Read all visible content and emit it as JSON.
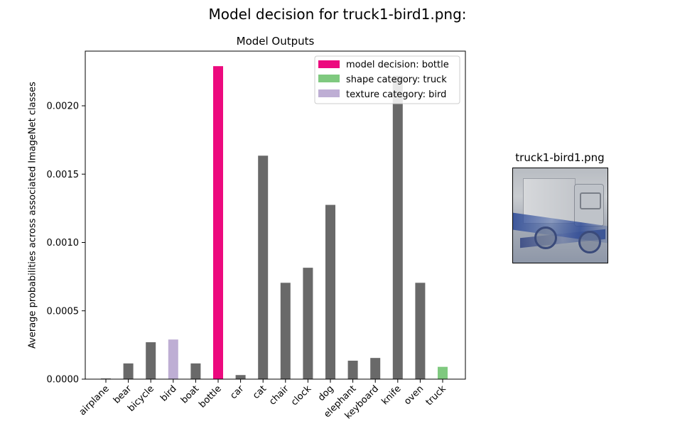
{
  "figure": {
    "suptitle": "Model decision for truck1-bird1.png:",
    "thumbnail_title": "truck1-bird1.png"
  },
  "chart_data": {
    "type": "bar",
    "title": "Model Outputs",
    "xlabel": "",
    "ylabel": "Average probabilities across associated ImageNet classes",
    "categories": [
      "airplane",
      "bear",
      "bicycle",
      "bird",
      "boat",
      "bottle",
      "car",
      "cat",
      "chair",
      "clock",
      "dog",
      "elephant",
      "keyboard",
      "knife",
      "oven",
      "truck"
    ],
    "values": [
      5e-06,
      0.000115,
      0.00027,
      0.00029,
      0.000115,
      0.00229,
      3e-05,
      0.001635,
      0.000705,
      0.000815,
      0.001275,
      0.000135,
      0.000155,
      0.00222,
      0.000705,
      9e-05
    ],
    "ylim": [
      0,
      0.0024
    ],
    "yticks": [
      0.0,
      0.0005,
      0.001,
      0.0015,
      0.002
    ],
    "ytick_labels": [
      "0.0000",
      "0.0005",
      "0.0010",
      "0.0015",
      "0.0020"
    ],
    "grid": false,
    "colors": {
      "default": "#696969",
      "model_decision": "#ec0a7e",
      "shape_category": "#7fc97f",
      "texture_category": "#beaed4"
    },
    "highlights": {
      "model_decision": "bottle",
      "shape_category": "truck",
      "texture_category": "bird"
    },
    "legend": {
      "position": "upper-right",
      "entries": [
        {
          "label": "model decision: bottle",
          "color": "#ec0a7e"
        },
        {
          "label": "shape category: truck",
          "color": "#7fc97f"
        },
        {
          "label": "texture category: bird",
          "color": "#beaed4"
        }
      ]
    }
  }
}
